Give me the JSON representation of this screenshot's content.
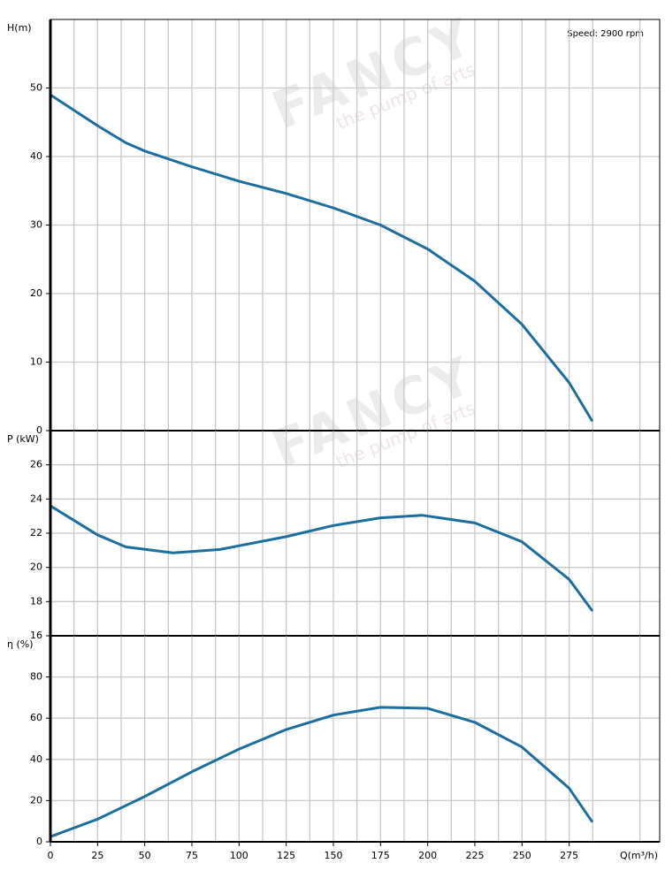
{
  "speed": "Speed: 2900 rpm",
  "watermark": [
    "FANCY",
    "the pump of arts"
  ],
  "chart_data": [
    {
      "type": "line",
      "ylabel": "H(m)",
      "x": [
        0,
        25,
        40,
        50,
        75,
        100,
        125,
        150,
        175,
        200,
        225,
        250,
        275,
        287
      ],
      "series": [
        {
          "color": "#1b6e9e",
          "values": [
            49,
            44.5,
            42,
            40.8,
            38.5,
            36.4,
            34.6,
            32.5,
            30,
            26.5,
            21.8,
            15.5,
            7,
            1.5
          ]
        }
      ],
      "xlim": [
        0,
        323
      ],
      "ylim": [
        0,
        60
      ],
      "yticks": [
        0,
        10,
        20,
        30,
        40,
        50
      ],
      "grid": true
    },
    {
      "type": "line",
      "ylabel": "P (kW)",
      "x": [
        0,
        25,
        40,
        65,
        90,
        125,
        150,
        175,
        197,
        225,
        250,
        275,
        287
      ],
      "series": [
        {
          "color": "#1b6e9e",
          "values": [
            23.6,
            21.9,
            21.2,
            20.85,
            21.05,
            21.8,
            22.45,
            22.9,
            23.05,
            22.6,
            21.5,
            19.3,
            17.5
          ]
        }
      ],
      "xlim": [
        0,
        323
      ],
      "ylim": [
        16,
        28
      ],
      "yticks": [
        16,
        18,
        20,
        22,
        24,
        26
      ],
      "grid": true
    },
    {
      "type": "line",
      "ylabel": "η (%)",
      "xlabel": "Q(m³/h)",
      "x": [
        0,
        25,
        50,
        75,
        100,
        125,
        150,
        175,
        200,
        225,
        250,
        275,
        287
      ],
      "series": [
        {
          "color": "#1b6e9e",
          "values": [
            2.5,
            11,
            22,
            34,
            45,
            54.5,
            61.5,
            65.3,
            64.8,
            58,
            46,
            26,
            10
          ]
        }
      ],
      "xlim": [
        0,
        323
      ],
      "ylim": [
        0,
        100
      ],
      "yticks": [
        0,
        20,
        40,
        60,
        80
      ],
      "xticks": [
        0,
        25,
        50,
        75,
        100,
        125,
        150,
        175,
        200,
        225,
        250,
        275
      ],
      "x_minor_ticks": [
        12.5,
        37.5,
        62.5,
        87.5,
        112.5,
        137.5,
        162.5,
        187.5,
        212.5,
        237.5,
        262.5,
        287.5,
        312.5
      ],
      "grid": true
    }
  ]
}
